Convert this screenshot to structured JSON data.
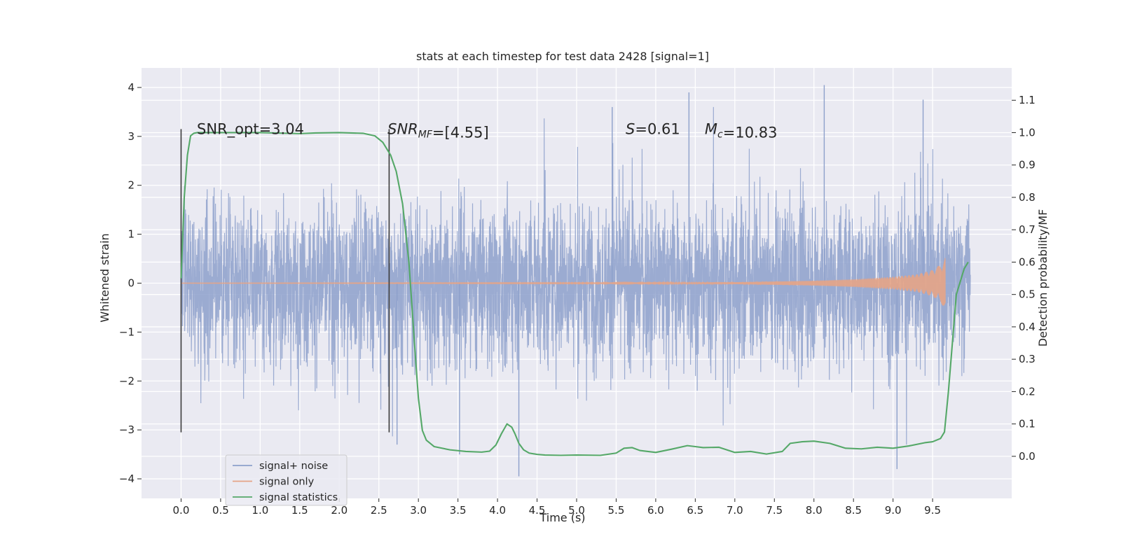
{
  "chart_data": {
    "type": "line",
    "title": "stats at each timestep for test data 2428 [signal=1]",
    "xlabel": "Time (s)",
    "ylabel": "Whitened strain",
    "ylabel_right": "Detection probability/MF",
    "xlim": [
      -0.5,
      10.5
    ],
    "ylim": [
      -4.4,
      4.4
    ],
    "ylim_right": [
      -0.13,
      1.2
    ],
    "x_ticks": [
      0.0,
      0.5,
      1.0,
      1.5,
      2.0,
      2.5,
      3.0,
      3.5,
      4.0,
      4.5,
      5.0,
      5.5,
      6.0,
      6.5,
      7.0,
      7.5,
      8.0,
      8.5,
      9.0,
      9.5
    ],
    "x_tick_labels": [
      "0.0",
      "0.5",
      "1.0",
      "1.5",
      "2.0",
      "2.5",
      "3.0",
      "3.5",
      "4.0",
      "4.5",
      "5.0",
      "5.5",
      "6.0",
      "6.5",
      "7.0",
      "7.5",
      "8.0",
      "8.5",
      "9.0",
      "9.5"
    ],
    "y_ticks": [
      -4,
      -3,
      -2,
      -1,
      0,
      1,
      2,
      3,
      4
    ],
    "y_tick_labels": [
      "−4",
      "−3",
      "−2",
      "−1",
      "0",
      "1",
      "2",
      "3",
      "4"
    ],
    "y_right_ticks": [
      0.0,
      0.1,
      0.2,
      0.3,
      0.4,
      0.5,
      0.6,
      0.7,
      0.8,
      0.9,
      1.0,
      1.1
    ],
    "y_right_tick_labels": [
      "0.0",
      "0.1",
      "0.2",
      "0.3",
      "0.4",
      "0.5",
      "0.6",
      "0.7",
      "0.8",
      "0.9",
      "1.0",
      "1.1"
    ],
    "grid": true,
    "legend_position": "lower-left",
    "series": [
      {
        "name": "signal+ noise",
        "axis": "left",
        "color": "#8da0cb",
        "kind": "noise",
        "x_range": [
          0.0,
          9.98
        ],
        "typical_amplitude": 1.3,
        "peak_max": 4.05,
        "peak_min": -3.95
      },
      {
        "name": "signal only",
        "axis": "left",
        "color": "#e5a486",
        "kind": "chirp",
        "x_range": [
          0.0,
          9.66
        ],
        "envelope_x": [
          0.0,
          6.0,
          7.0,
          8.0,
          8.5,
          9.0,
          9.3,
          9.5,
          9.6,
          9.66
        ],
        "envelope_y": [
          0.005,
          0.01,
          0.02,
          0.05,
          0.08,
          0.13,
          0.18,
          0.27,
          0.38,
          0.55
        ]
      },
      {
        "name": "signal statistics",
        "axis": "right",
        "color": "#55a868",
        "kind": "line",
        "x": [
          0.0,
          0.04,
          0.08,
          0.12,
          0.16,
          0.2,
          0.3,
          0.5,
          1.0,
          1.5,
          1.7,
          2.0,
          2.3,
          2.45,
          2.55,
          2.65,
          2.72,
          2.8,
          2.88,
          2.95,
          3.0,
          3.05,
          3.1,
          3.2,
          3.4,
          3.6,
          3.8,
          3.9,
          3.98,
          4.05,
          4.12,
          4.18,
          4.22,
          4.27,
          4.33,
          4.4,
          4.5,
          4.6,
          4.8,
          5.0,
          5.3,
          5.5,
          5.6,
          5.7,
          5.8,
          6.0,
          6.2,
          6.4,
          6.5,
          6.6,
          6.8,
          7.0,
          7.2,
          7.4,
          7.6,
          7.7,
          7.85,
          8.0,
          8.2,
          8.4,
          8.6,
          8.8,
          9.0,
          9.2,
          9.4,
          9.5,
          9.6,
          9.65,
          9.7,
          9.75,
          9.8,
          9.9,
          9.95
        ],
        "y": [
          0.55,
          0.8,
          0.93,
          0.99,
          0.998,
          1.0,
          1.0,
          1.0,
          1.0,
          0.997,
          0.999,
          1.0,
          0.998,
          0.99,
          0.97,
          0.93,
          0.88,
          0.78,
          0.6,
          0.35,
          0.18,
          0.08,
          0.05,
          0.03,
          0.02,
          0.015,
          0.013,
          0.016,
          0.035,
          0.07,
          0.1,
          0.09,
          0.07,
          0.04,
          0.02,
          0.01,
          0.006,
          0.004,
          0.003,
          0.004,
          0.003,
          0.01,
          0.025,
          0.027,
          0.018,
          0.012,
          0.022,
          0.033,
          0.03,
          0.027,
          0.028,
          0.012,
          0.015,
          0.007,
          0.015,
          0.04,
          0.045,
          0.047,
          0.04,
          0.025,
          0.023,
          0.028,
          0.025,
          0.032,
          0.042,
          0.045,
          0.055,
          0.075,
          0.2,
          0.35,
          0.5,
          0.58,
          0.6
        ]
      }
    ],
    "marker_lines": [
      {
        "x": 0.0,
        "y_top": 3.15,
        "y_bottom": -3.05
      },
      {
        "x": 2.63,
        "y_top": 3.15,
        "y_bottom": -3.05
      }
    ],
    "annotations": [
      {
        "x": 0.2,
        "y": 3.15,
        "parts": [
          {
            "text": "SNR_opt=3.04",
            "italic": false,
            "sub": false
          }
        ]
      },
      {
        "x": 2.61,
        "y": 3.15,
        "parts": [
          {
            "text": "SNR",
            "italic": true,
            "sub": false
          },
          {
            "text": "MF",
            "italic": true,
            "sub": true
          },
          {
            "text": "=[4.55]",
            "italic": false,
            "sub": false
          }
        ]
      },
      {
        "x": 5.62,
        "y": 3.15,
        "parts": [
          {
            "text": "S",
            "italic": true,
            "sub": false
          },
          {
            "text": "=0.61",
            "italic": false,
            "sub": false
          }
        ]
      },
      {
        "x": 6.62,
        "y": 3.15,
        "parts": [
          {
            "text": "M",
            "italic": true,
            "sub": false
          },
          {
            "text": "c",
            "italic": true,
            "sub": true
          },
          {
            "text": "=10.83",
            "italic": false,
            "sub": false
          }
        ]
      }
    ],
    "colors": {
      "plot_background": "#eaeaf2",
      "grid": "#ffffff",
      "marker_line": "#3b3b3b",
      "legend_background": "#eaeaf2",
      "legend_border": "#cccccc",
      "text": "#262626"
    }
  }
}
